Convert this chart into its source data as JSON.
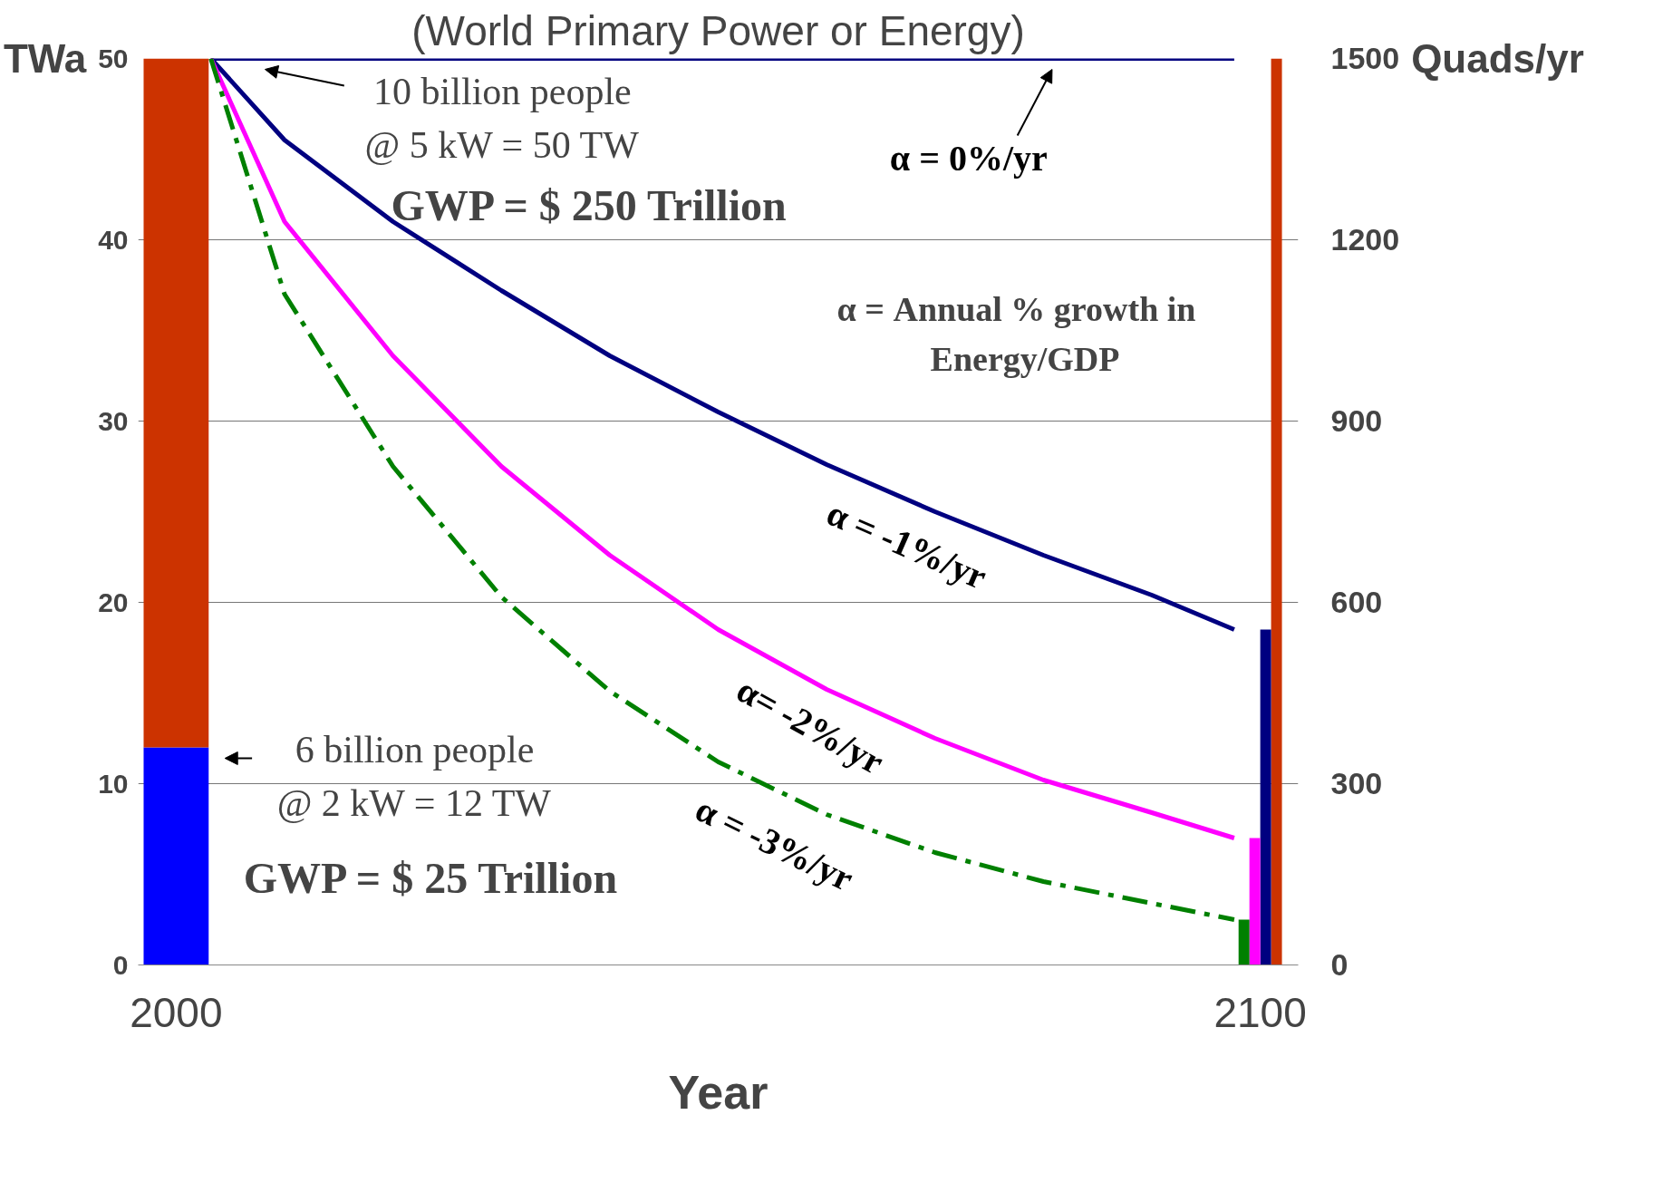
{
  "chart_data": {
    "type": "line",
    "title": "(World Primary Power or Energy)",
    "xlabel": "Year",
    "ylabel": "TWa",
    "y2label": "Quads/yr",
    "xlim": [
      1996.5,
      2103.5
    ],
    "xticks": [
      2000,
      2100
    ],
    "ylim": [
      0,
      50
    ],
    "yticks": [
      0,
      10,
      20,
      30,
      40,
      50
    ],
    "y2lim": [
      0,
      1500
    ],
    "y2ticks": [
      0,
      300,
      600,
      900,
      1200,
      1500
    ],
    "grid": "y",
    "line_style": "solid",
    "series": [
      {
        "name": "α = 0%/yr",
        "color": "#000080",
        "x": [
          2003.2,
          2097.6
        ],
        "values": [
          50,
          50
        ]
      },
      {
        "name": "α = -1%/yr",
        "color": "#000080",
        "x": [
          2003.2,
          2010,
          2020,
          2030,
          2040,
          2050,
          2060,
          2070,
          2080,
          2090,
          2097.6
        ],
        "values": [
          50,
          45.5,
          41,
          37.2,
          33.6,
          30.5,
          27.6,
          25,
          22.6,
          20.4,
          18.5
        ]
      },
      {
        "name": "α= -2%/yr",
        "color": "#ff00ff",
        "x": [
          2003.2,
          2010,
          2020,
          2030,
          2040,
          2050,
          2060,
          2070,
          2080,
          2090,
          2097.6
        ],
        "values": [
          50,
          41,
          33.6,
          27.5,
          22.6,
          18.5,
          15.2,
          12.5,
          10.2,
          8.4,
          7
        ]
      },
      {
        "name": "α = -3%/yr",
        "color": "#008000",
        "line_style": "dashed",
        "x": [
          2003.2,
          2010,
          2020,
          2030,
          2040,
          2050,
          2060,
          2070,
          2080,
          2090,
          2097.6
        ],
        "values": [
          50,
          37,
          27.5,
          20.3,
          15.1,
          11.2,
          8.3,
          6.2,
          4.6,
          3.4,
          2.5
        ]
      },
      {
        "type": "bar",
        "color": "#0000ff",
        "values": [
          12,
          null,
          null,
          null,
          null
        ]
      },
      {
        "type": "bar",
        "color": "#cc3300",
        "values": [
          38,
          null,
          null,
          null,
          50
        ]
      },
      {
        "type": "bar",
        "color": "#000080",
        "values": [
          null,
          null,
          null,
          18.5,
          null
        ]
      },
      {
        "type": "bar",
        "color": "#ff00ff",
        "values": [
          null,
          null,
          7,
          null,
          null
        ]
      },
      {
        "type": "bar",
        "color": "#008000",
        "values": [
          null,
          2.5,
          null,
          null,
          null
        ]
      }
    ],
    "x": [
      2000,
      2098.5,
      2099.5,
      2100.5,
      2101.5
    ],
    "stacked": true,
    "annotations": [
      "10 billion people\n@ 5 kW = 50 TW",
      "GWP = $ 250 Trillion",
      "6 billion people\n@ 2 kW = 12 TW",
      "GWP = $ 25 Trillion",
      "α = Annual % growth   in\nEnergy/GDP"
    ]
  }
}
